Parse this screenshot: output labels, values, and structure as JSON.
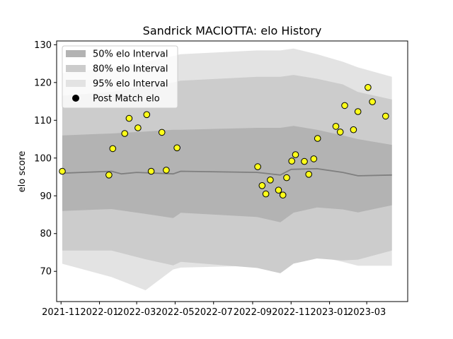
{
  "chart_data": {
    "type": "line",
    "title": "Sandrick MACIOTTA: elo History",
    "xlabel": "",
    "ylabel": "elo score",
    "xlim": [
      "2021-10-25",
      "2023-05-05"
    ],
    "ylim": [
      62,
      131
    ],
    "x_ticks": [
      "2021-11",
      "2022-01",
      "2022-03",
      "2022-05",
      "2022-07",
      "2022-09",
      "2022-11",
      "2023-01",
      "2023-03"
    ],
    "y_ticks": [
      70,
      80,
      90,
      100,
      110,
      120,
      130
    ],
    "legend": {
      "position": "top-left",
      "entries": [
        "50% elo Interval",
        "80% elo Interval",
        "95% elo Interval",
        "Post Match elo"
      ]
    },
    "colors": {
      "band_50": "#b3b3b3",
      "band_80": "#cccccc",
      "band_95": "#e3e3e3",
      "line": "#7f7f7f",
      "marker_face": "#ffff19",
      "marker_edge": "#000000"
    },
    "bands": {
      "x": [
        "2021-11-03",
        "2022-01-20",
        "2022-03-15",
        "2022-04-28",
        "2022-05-10",
        "2022-09-08",
        "2022-10-15",
        "2022-11-05",
        "2022-12-12",
        "2023-01-22",
        "2023-02-15",
        "2023-04-10"
      ],
      "95": {
        "upper": [
          122.5,
          124,
          125.5,
          127,
          127.5,
          128.5,
          128.5,
          129,
          127.5,
          125.5,
          124,
          121.5
        ],
        "lower": [
          72,
          68.5,
          65,
          70.5,
          71,
          71.5,
          71,
          72.5,
          74,
          72.5,
          71.5,
          71.5
        ]
      },
      "80": {
        "upper": [
          116.5,
          117.5,
          119,
          120,
          120.5,
          121.5,
          121.5,
          122,
          121,
          119.5,
          117.5,
          115.5
        ]
      },
      "50": {
        "upper": [
          106,
          106.5,
          107,
          107.5,
          107.5,
          108,
          108,
          108.5,
          107.5,
          106,
          105,
          103.5
        ]
      }
    },
    "mean_line": {
      "x": [
        "2021-11-03",
        "2022-01-20",
        "2022-02-05",
        "2022-03-01",
        "2022-04-28",
        "2022-05-10",
        "2022-09-08",
        "2022-10-15",
        "2022-11-01",
        "2022-12-12",
        "2023-01-22",
        "2023-02-15",
        "2023-04-10"
      ],
      "y": [
        96,
        96.5,
        95.8,
        96.2,
        95.8,
        96.5,
        96.2,
        95.5,
        97,
        97.2,
        96.2,
        95.3,
        95.5
      ]
    },
    "post_match_elo": {
      "x": [
        "2021-11-03",
        "2022-01-16",
        "2022-01-22",
        "2022-02-10",
        "2022-02-17",
        "2022-03-03",
        "2022-03-17",
        "2022-03-24",
        "2022-04-10",
        "2022-04-17",
        "2022-05-04",
        "2022-09-09",
        "2022-09-16",
        "2022-09-22",
        "2022-09-29",
        "2022-10-12",
        "2022-10-19",
        "2022-10-25",
        "2022-11-02",
        "2022-11-08",
        "2022-11-22",
        "2022-11-29",
        "2022-12-07",
        "2022-12-13",
        "2023-01-11",
        "2023-01-18",
        "2023-01-25",
        "2023-02-08",
        "2023-02-15",
        "2023-03-03",
        "2023-03-10",
        "2023-03-31"
      ],
      "y": [
        96.5,
        95.5,
        102.5,
        106.5,
        110.5,
        108,
        111.5,
        96.5,
        106.8,
        96.8,
        102.7,
        97.7,
        92.7,
        90.5,
        94.2,
        91.5,
        90.2,
        94.8,
        99.2,
        100.9,
        99.1,
        95.7,
        99.8,
        105.2,
        108.4,
        106.9,
        113.9,
        107.5,
        112.3,
        118.7,
        114.9,
        111.1
      ]
    }
  }
}
